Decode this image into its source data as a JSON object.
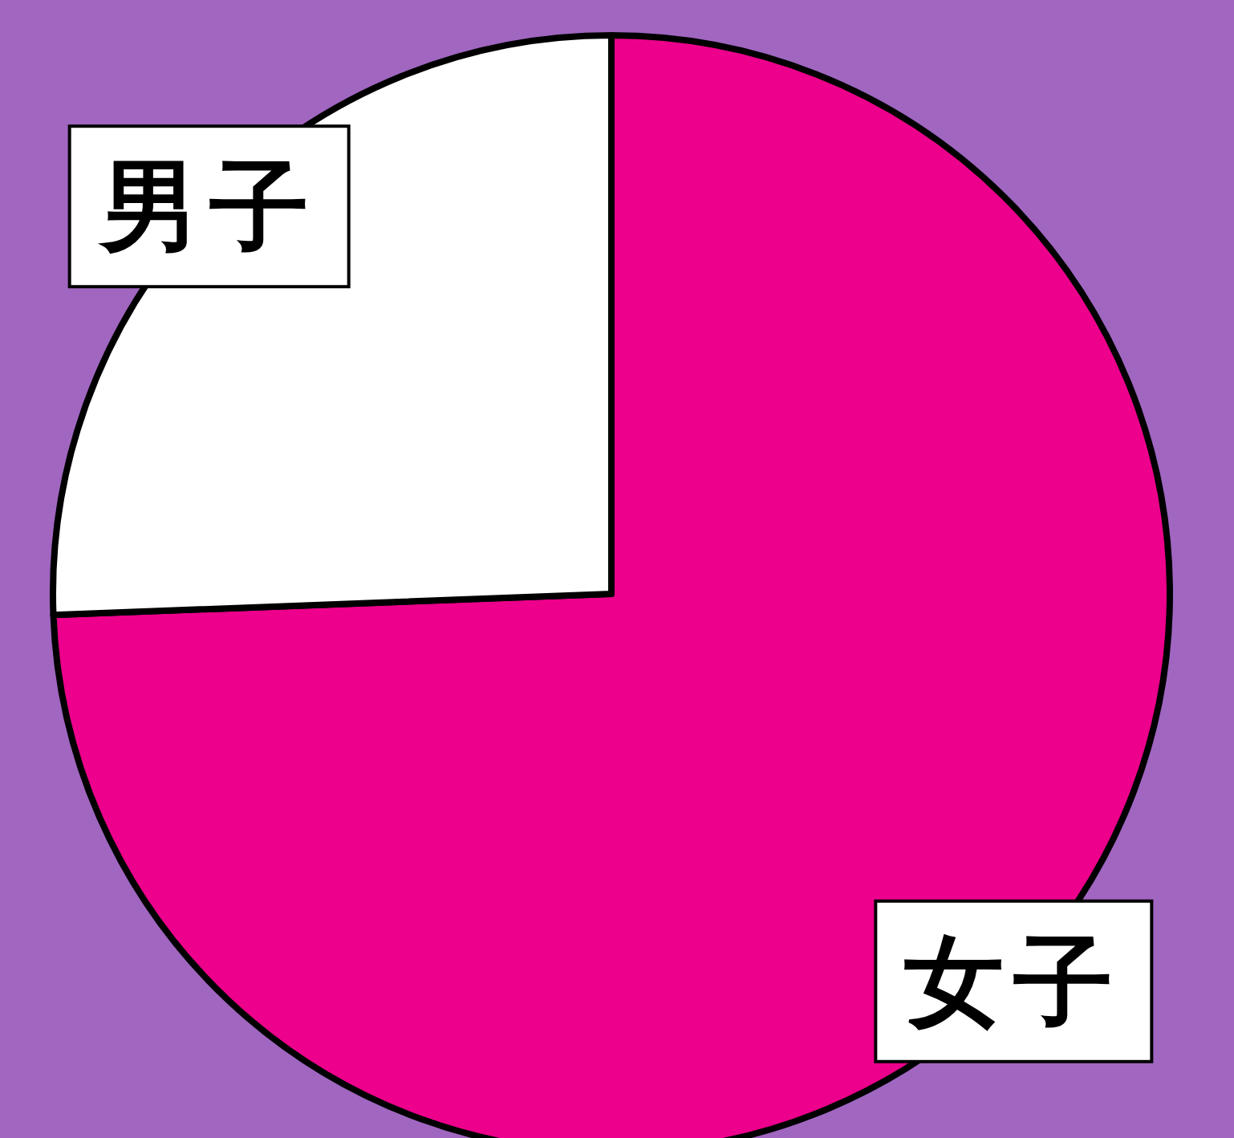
{
  "chart_data": {
    "type": "pie",
    "categories": [
      "女子",
      "男子"
    ],
    "values": [
      74.4,
      25.6
    ],
    "colors": [
      "#ec008c",
      "#ffffff"
    ]
  }
}
